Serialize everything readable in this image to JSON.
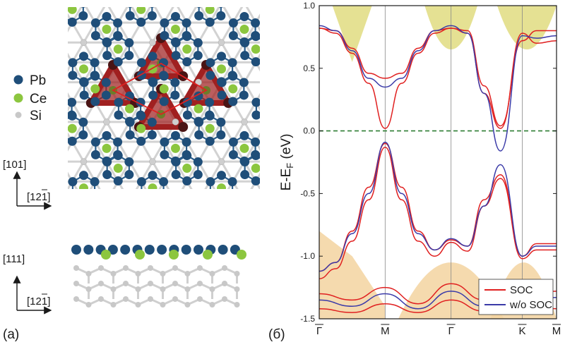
{
  "panel_a": {
    "label": "(a)",
    "legend": [
      {
        "element": "Pb",
        "color": "#1f4e79"
      },
      {
        "element": "Ce",
        "color": "#8cc63f"
      },
      {
        "element": "Si",
        "color": "#c8c8c8"
      }
    ],
    "top_axes": {
      "vertical": "[101]",
      "horizontal": "[121]"
    },
    "side_axes": {
      "vertical": "[111]",
      "horizontal": "[121]"
    },
    "colors": {
      "pb": "#1f4e79",
      "ce": "#8cc63f",
      "si": "#cfcfcf",
      "bond_pb": "#2b5d8a",
      "triangle": "#a02020",
      "cell": "#e02020"
    }
  },
  "panel_b": {
    "label": "(б)",
    "ylabel": "E-E_F (eV)",
    "legend": [
      {
        "name": "SOC",
        "color": "#e02020"
      },
      {
        "name": "w/o SOC",
        "color": "#3a3aa8"
      }
    ]
  },
  "chart_data": {
    "type": "line",
    "ylabel": "E-E_F (eV)",
    "ylim": [
      -1.5,
      1.0
    ],
    "yticks": [
      "1.0",
      "0.5",
      "0.0",
      "-0.5",
      "-1.0",
      "-1.5"
    ],
    "k_labels": [
      "Γ",
      "M",
      "Γ",
      "K",
      "M"
    ],
    "k_positions": [
      0.0,
      1.0,
      2.0,
      3.08,
      3.6
    ],
    "fermi_level": 0.0,
    "series": [
      {
        "name": "SOC",
        "color": "#e02020",
        "bands": [
          {
            "x": [
              0,
              0.25,
              0.5,
              0.75,
              1.0,
              1.25,
              1.5,
              1.75,
              2.0,
              2.25,
              2.5,
              2.75,
              3.08,
              3.3,
              3.6
            ],
            "y": [
              0.82,
              0.78,
              0.62,
              0.38,
              0.02,
              0.38,
              0.62,
              0.78,
              0.82,
              0.78,
              0.3,
              0.02,
              0.78,
              0.7,
              0.72
            ]
          },
          {
            "x": [
              0,
              0.25,
              0.5,
              0.75,
              1.0,
              1.25,
              1.5,
              1.75,
              2.0,
              2.25,
              2.5,
              2.75,
              3.08,
              3.3,
              3.6
            ],
            "y": [
              0.82,
              0.8,
              0.66,
              0.46,
              0.42,
              0.46,
              0.66,
              0.8,
              0.82,
              0.8,
              0.36,
              0.04,
              0.72,
              0.8,
              0.8
            ]
          },
          {
            "x": [
              0,
              0.25,
              0.5,
              0.75,
              1.0,
              1.25,
              1.5,
              1.75,
              2.0,
              2.25,
              2.5,
              2.75,
              3.08,
              3.3,
              3.6
            ],
            "y": [
              -1.12,
              -1.05,
              -0.8,
              -0.45,
              -0.1,
              -0.45,
              -0.8,
              -0.95,
              -0.87,
              -0.92,
              -0.55,
              -0.35,
              -1.0,
              -0.9,
              -0.9
            ]
          },
          {
            "x": [
              0,
              0.25,
              0.5,
              0.75,
              1.0,
              1.25,
              1.5,
              1.75,
              2.0,
              2.25,
              2.5,
              2.75,
              3.08,
              3.3,
              3.6
            ],
            "y": [
              -1.18,
              -1.1,
              -0.88,
              -0.55,
              -0.13,
              -0.55,
              -0.88,
              -1.0,
              -0.89,
              -0.96,
              -0.6,
              -0.38,
              -1.02,
              -0.95,
              -0.95
            ]
          },
          {
            "x": [
              0,
              0.5,
              1.0,
              1.5,
              2.0,
              2.5,
              3.08,
              3.6
            ],
            "y": [
              -1.3,
              -1.35,
              -1.25,
              -1.38,
              -1.22,
              -1.35,
              -1.3,
              -1.28
            ]
          },
          {
            "x": [
              0,
              0.5,
              1.0,
              1.5,
              2.0,
              2.5,
              3.08,
              3.6
            ],
            "y": [
              -1.42,
              -1.45,
              -1.38,
              -1.45,
              -1.35,
              -1.44,
              -1.4,
              -1.42
            ]
          }
        ]
      },
      {
        "name": "w/o SOC",
        "color": "#3a3aa8",
        "bands": [
          {
            "x": [
              0,
              0.25,
              0.5,
              0.75,
              1.0,
              1.25,
              1.5,
              1.75,
              2.0,
              2.25,
              2.5,
              2.75,
              3.08,
              3.3,
              3.6
            ],
            "y": [
              0.84,
              0.8,
              0.64,
              0.42,
              0.35,
              0.42,
              0.64,
              0.8,
              0.84,
              0.78,
              0.3,
              -0.16,
              0.76,
              0.74,
              0.76
            ]
          },
          {
            "x": [
              0,
              0.25,
              0.5,
              0.75,
              1.0,
              1.25,
              1.5,
              1.75,
              2.0,
              2.25,
              2.5,
              2.75,
              3.08,
              3.3,
              3.6
            ],
            "y": [
              -1.12,
              -1.05,
              -0.82,
              -0.5,
              -0.09,
              -0.5,
              -0.82,
              -0.95,
              -0.86,
              -0.92,
              -0.6,
              -0.27,
              -1.0,
              -0.92,
              -0.92
            ]
          },
          {
            "x": [
              0,
              0.5,
              1.0,
              1.5,
              2.0,
              2.5,
              3.08,
              3.6
            ],
            "y": [
              -1.35,
              -1.4,
              -1.3,
              -1.42,
              -1.28,
              -1.4,
              -1.35,
              -1.33
            ]
          }
        ]
      }
    ],
    "projected_bulk_regions": [
      {
        "color": "#e0dc80",
        "x": [
          0.2,
          0.5,
          0.8
        ],
        "y_low": [
          1.0,
          0.55,
          1.0
        ],
        "y_high": [
          1.0,
          1.0,
          1.0
        ]
      },
      {
        "color": "#f3d4a0",
        "x": [
          0,
          0.5,
          1.0
        ],
        "y_low": [
          -1.5,
          -1.5,
          -1.5
        ],
        "y_high": [
          -0.8,
          -1.0,
          -1.4
        ]
      }
    ]
  }
}
